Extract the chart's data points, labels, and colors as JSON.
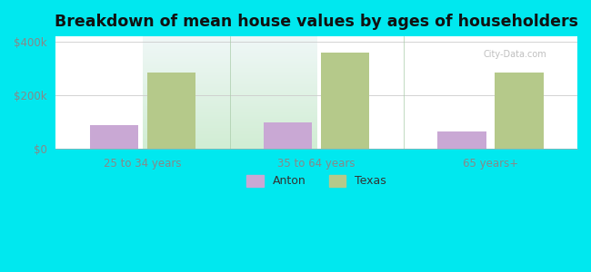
{
  "title": "Breakdown of mean house values by ages of householders",
  "categories": [
    "25 to 34 years",
    "35 to 64 years",
    "65 years+"
  ],
  "anton_values": [
    90000,
    100000,
    65000
  ],
  "texas_values": [
    285000,
    360000,
    285000
  ],
  "anton_color": "#c9a8d4",
  "texas_color": "#b5c98a",
  "background_outer": "#00e8ef",
  "background_inner_bottom": "#c8e8b0",
  "background_inner_top": "#e8f4f8",
  "ylabel_ticks": [
    "$0",
    "$200k",
    "$400k"
  ],
  "ytick_values": [
    0,
    200000,
    400000
  ],
  "ylim": [
    0,
    420000
  ],
  "legend_labels": [
    "Anton",
    "Texas"
  ],
  "bar_width": 0.28,
  "bar_gap": 0.05,
  "title_fontsize": 12.5,
  "tick_fontsize": 8.5,
  "legend_fontsize": 9,
  "watermark": "City-Data.com"
}
